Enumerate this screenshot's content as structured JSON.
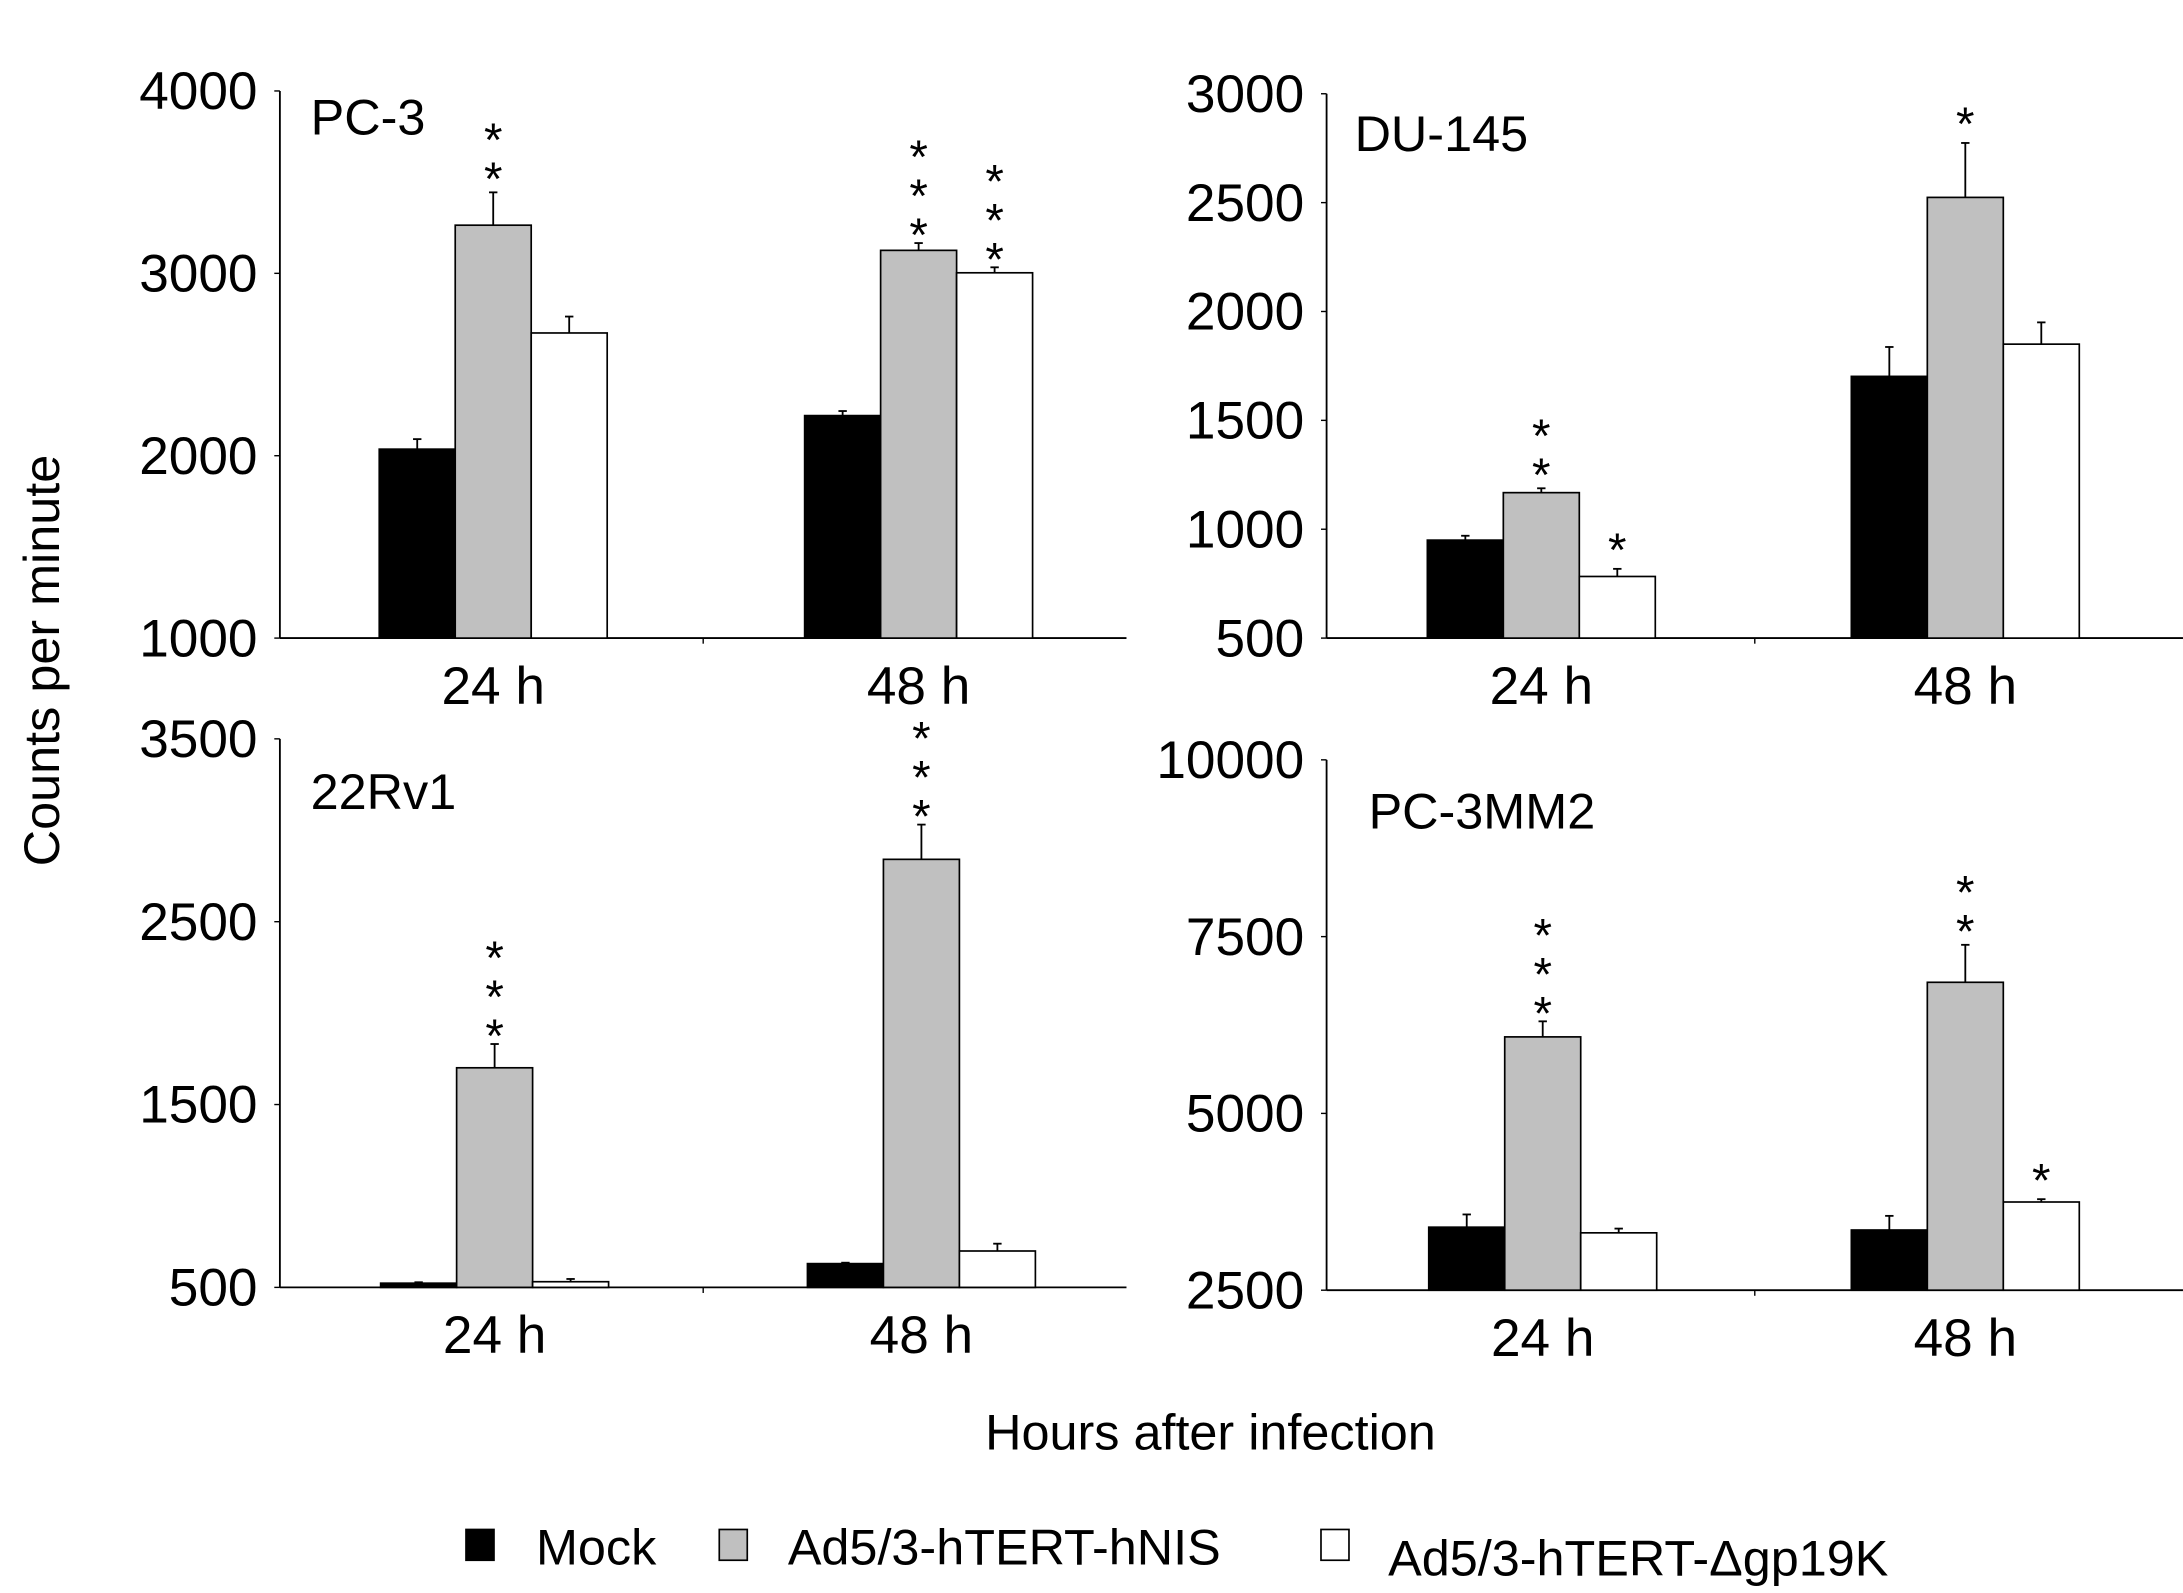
{
  "chart_data": [
    {
      "type": "bar",
      "title": "PC-3",
      "categories": [
        "24 h",
        "48 h"
      ],
      "ylim": [
        1000,
        4000
      ],
      "yticks": [
        1000,
        2000,
        3000,
        4000
      ],
      "series": [
        {
          "name": "Mock",
          "values": [
            2036,
            2220
          ],
          "errors": [
            55,
            25
          ],
          "significance": [
            "",
            ""
          ]
        },
        {
          "name": "Ad5/3-hTERT-hNIS",
          "values": [
            3264,
            3126
          ],
          "errors": [
            180,
            40
          ],
          "significance": [
            "**",
            "***"
          ]
        },
        {
          "name": "Ad5/3-hTERT-Δgp19K",
          "values": [
            2673,
            3003
          ],
          "errors": [
            90,
            30
          ],
          "significance": [
            "",
            "***"
          ]
        }
      ]
    },
    {
      "type": "bar",
      "title": "DU-145",
      "categories": [
        "24 h",
        "48 h"
      ],
      "ylim": [
        500,
        3000
      ],
      "yticks": [
        500,
        1000,
        1500,
        2000,
        2500,
        3000
      ],
      "series": [
        {
          "name": "Mock",
          "values": [
            950,
            1702
          ],
          "errors": [
            20,
            135
          ],
          "significance": [
            "",
            ""
          ]
        },
        {
          "name": "Ad5/3-hTERT-hNIS",
          "values": [
            1168,
            2524
          ],
          "errors": [
            20,
            250
          ],
          "significance": [
            "**",
            "*"
          ]
        },
        {
          "name": "Ad5/3-hTERT-Δgp19K",
          "values": [
            783,
            1850
          ],
          "errors": [
            35,
            100
          ],
          "significance": [
            "*",
            ""
          ]
        }
      ]
    },
    {
      "type": "bar",
      "title": "22Rv1",
      "categories": [
        "24 h",
        "48 h"
      ],
      "ylim": [
        500,
        3500
      ],
      "yticks": [
        500,
        1500,
        2500,
        3500
      ],
      "series": [
        {
          "name": "Mock",
          "values": [
            523,
            630
          ],
          "errors": [
            5,
            5
          ],
          "significance": [
            "",
            ""
          ]
        },
        {
          "name": "Ad5/3-hTERT-hNIS",
          "values": [
            1701,
            2841
          ],
          "errors": [
            130,
            190
          ],
          "significance": [
            "***",
            "***"
          ]
        },
        {
          "name": "Ad5/3-hTERT-Δgp19K",
          "values": [
            531,
            699
          ],
          "errors": [
            15,
            40
          ],
          "significance": [
            "",
            ""
          ]
        }
      ]
    },
    {
      "type": "bar",
      "title": "PC-3MM2",
      "categories": [
        "24 h",
        "48 h"
      ],
      "ylim": [
        2500,
        10000
      ],
      "yticks": [
        2500,
        5000,
        7500,
        10000
      ],
      "series": [
        {
          "name": "Mock",
          "values": [
            3391,
            3351
          ],
          "errors": [
            180,
            200
          ],
          "significance": [
            "",
            ""
          ]
        },
        {
          "name": "Ad5/3-hTERT-hNIS",
          "values": [
            6082,
            6854
          ],
          "errors": [
            220,
            530
          ],
          "significance": [
            "***",
            "**"
          ]
        },
        {
          "name": "Ad5/3-hTERT-Δgp19K",
          "values": [
            3311,
            3747
          ],
          "errors": [
            60,
            40
          ],
          "significance": [
            "",
            "*"
          ]
        }
      ]
    }
  ],
  "ylabel": "Counts per minute",
  "xlabel": "Hours after infection",
  "legend": {
    "placement": "bottom",
    "items": [
      {
        "label": "Mock",
        "color": "#000000"
      },
      {
        "label": "Ad5/3-hTERT-hNIS",
        "color": "#c0c0c0"
      },
      {
        "label": "Ad5/3-hTERT-Δgp19K",
        "color": "#ffffff"
      }
    ]
  },
  "grid": false
}
